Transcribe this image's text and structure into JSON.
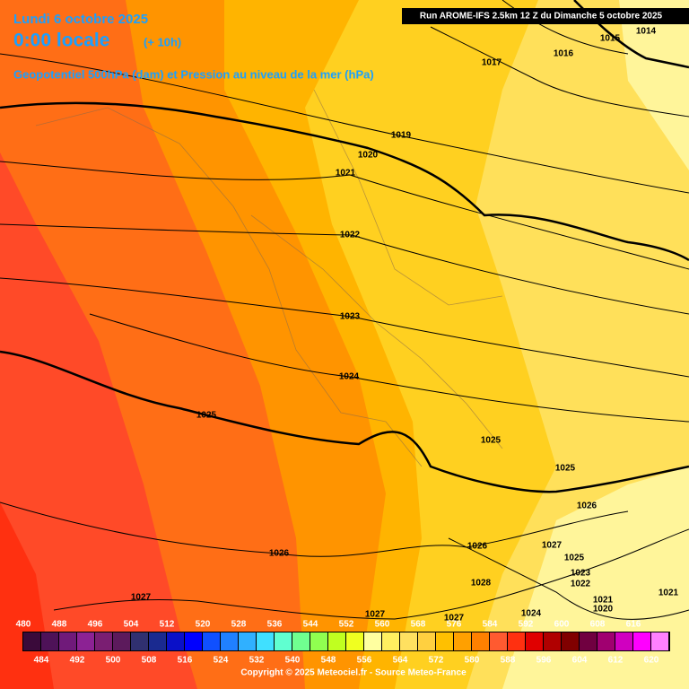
{
  "header": {
    "date": "Lundi 6 octobre 2025",
    "time": "0:00 locale",
    "offset": "(+ 10h)",
    "subtitle": "Geopotentiel 500hPa (dam) et Pression au niveau de la mer (hPa)",
    "run": "Run AROME-IFS 2.5km 12 Z du Dimanche 5 octobre 2025"
  },
  "isobar_labels": [
    "1015",
    "1014",
    "1016",
    "1017",
    "1019",
    "1020",
    "1021",
    "1022",
    "1023",
    "1024",
    "1025",
    "1025",
    "1025",
    "1026",
    "1026",
    "1027",
    "1025",
    "1023",
    "1022",
    "1028",
    "1026",
    "1027",
    "1027",
    "1027",
    "1024",
    "1021",
    "1020",
    "1021"
  ],
  "scale": {
    "values": [
      480,
      484,
      488,
      492,
      496,
      500,
      504,
      508,
      512,
      516,
      520,
      524,
      528,
      532,
      536,
      540,
      544,
      548,
      552,
      556,
      560,
      564,
      568,
      572,
      576,
      580,
      584,
      588,
      592,
      596,
      600,
      604,
      608,
      612,
      616,
      620
    ],
    "colors": [
      "#3a0a3a",
      "#4e1258",
      "#701a7a",
      "#8c2294",
      "#7a1e72",
      "#5c1a5c",
      "#303070",
      "#1a2a90",
      "#0a10c8",
      "#0000ff",
      "#1050ff",
      "#2080ff",
      "#30b0ff",
      "#40e0ff",
      "#60ffd0",
      "#70ff90",
      "#90ff50",
      "#c0ff20",
      "#f0ff20",
      "#ffffa0",
      "#fff060",
      "#ffe060",
      "#ffd040",
      "#ffc000",
      "#ffa000",
      "#ff8000",
      "#ff5a30",
      "#ff3010",
      "#e00000",
      "#b00000",
      "#800000",
      "#700040",
      "#a00070",
      "#d000c0",
      "#ff00ff",
      "#ff80ff"
    ]
  },
  "footer": {
    "copyright": "Copyright © 2025 Meteociel.fr - Source Meteo-France"
  }
}
